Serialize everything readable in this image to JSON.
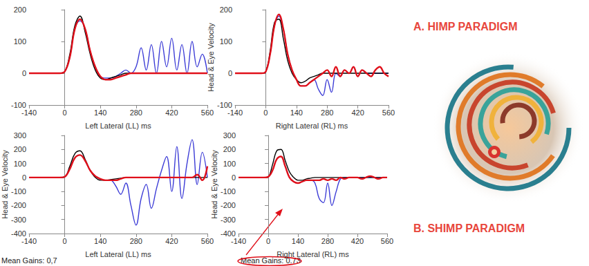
{
  "panel_labels": [
    "A. HIMP PARADIGM",
    "B. SHIMP PARADIGM"
  ],
  "chart_data": [
    {
      "type": "line",
      "x_label": "Left Lateral (LL) ms",
      "x": [
        -140,
        -120,
        -100,
        -80,
        -60,
        -40,
        -20,
        0,
        20,
        40,
        60,
        80,
        100,
        120,
        140,
        160,
        180,
        200,
        220,
        240,
        260,
        280,
        300,
        320,
        340,
        360,
        380,
        400,
        420,
        440,
        460,
        480,
        500,
        520,
        540,
        560
      ],
      "xlim": [
        -140,
        560
      ],
      "xticks": [
        -140,
        0,
        140,
        280,
        420,
        560
      ],
      "ylim": [
        -100,
        200
      ],
      "yticks": [
        -100,
        0,
        100,
        200
      ],
      "grid": false,
      "series": [
        {
          "color": "#3b3bd6",
          "values": [
            0,
            0,
            0,
            0,
            0,
            0,
            0,
            5,
            50,
            140,
            165,
            140,
            70,
            20,
            -10,
            -15,
            -15,
            -10,
            0,
            10,
            0,
            20,
            80,
            10,
            90,
            0,
            100,
            20,
            110,
            10,
            90,
            0,
            100,
            20,
            60,
            0
          ]
        },
        {
          "color": "#000000",
          "values": [
            0,
            0,
            0,
            0,
            0,
            0,
            0,
            5,
            60,
            150,
            180,
            130,
            60,
            10,
            -15,
            -20,
            -15,
            -10,
            -5,
            0,
            0,
            0,
            0,
            0,
            0,
            0,
            0,
            0,
            0,
            0,
            0,
            0,
            0,
            0,
            0,
            0
          ]
        },
        {
          "color": "#e0101a",
          "values": [
            0,
            0,
            0,
            0,
            0,
            0,
            0,
            5,
            50,
            140,
            170,
            140,
            70,
            20,
            -10,
            -20,
            -20,
            -15,
            -10,
            -5,
            0,
            0,
            0,
            0,
            0,
            0,
            0,
            0,
            0,
            0,
            0,
            0,
            0,
            0,
            0,
            0
          ]
        }
      ]
    },
    {
      "type": "line",
      "x_label": "Right Lateral (RL) ms",
      "y_label": "Head & Eye Velocity",
      "x": [
        -140,
        -120,
        -100,
        -80,
        -60,
        -40,
        -20,
        0,
        20,
        40,
        60,
        80,
        100,
        120,
        140,
        160,
        180,
        200,
        220,
        240,
        260,
        280,
        300,
        320,
        340,
        360,
        380,
        400,
        420,
        440,
        460,
        480,
        500,
        520,
        540,
        560
      ],
      "xlim": [
        -140,
        560
      ],
      "xticks": [
        -140,
        0,
        140,
        280,
        420,
        560
      ],
      "ylim": [
        -100,
        200
      ],
      "yticks": [
        -100,
        0,
        100,
        200
      ],
      "grid": false,
      "series": [
        {
          "color": "#3b3bd6",
          "values": [
            0,
            0,
            0,
            0,
            0,
            0,
            0,
            5,
            60,
            150,
            180,
            140,
            60,
            10,
            -20,
            -40,
            -40,
            -30,
            -20,
            -50,
            -70,
            -20,
            -60,
            0,
            -10,
            10,
            0,
            20,
            -10,
            10,
            0,
            0,
            0,
            0,
            0,
            0
          ]
        },
        {
          "color": "#000000",
          "values": [
            0,
            0,
            0,
            0,
            0,
            0,
            0,
            5,
            70,
            160,
            170,
            110,
            40,
            0,
            -20,
            -30,
            -25,
            -15,
            -10,
            -5,
            0,
            0,
            0,
            0,
            0,
            0,
            0,
            0,
            0,
            0,
            0,
            0,
            0,
            0,
            0,
            0
          ]
        },
        {
          "color": "#e0101a",
          "values": [
            0,
            0,
            0,
            0,
            0,
            0,
            0,
            5,
            60,
            150,
            185,
            140,
            60,
            10,
            -20,
            -40,
            -40,
            -30,
            -20,
            -10,
            0,
            10,
            -10,
            20,
            -10,
            10,
            0,
            20,
            -10,
            10,
            0,
            -10,
            10,
            20,
            0,
            -10
          ]
        }
      ]
    },
    {
      "type": "line",
      "x_label": "Left Lateral (LL) ms",
      "y_label": "Head & Eye Velocity",
      "annotation": "Mean Gains: 0,7",
      "x": [
        -140,
        -120,
        -100,
        -80,
        -60,
        -40,
        -20,
        0,
        20,
        40,
        60,
        80,
        100,
        120,
        140,
        160,
        180,
        200,
        220,
        240,
        260,
        280,
        300,
        320,
        340,
        360,
        380,
        400,
        420,
        440,
        460,
        480,
        500,
        520,
        540,
        560
      ],
      "xlim": [
        -140,
        560
      ],
      "xticks": [
        -140,
        0,
        140,
        280,
        420,
        560
      ],
      "ylim": [
        -400,
        300
      ],
      "yticks": [
        -400,
        -300,
        -200,
        -100,
        0,
        100,
        200,
        300
      ],
      "grid": false,
      "series": [
        {
          "color": "#3b3bd6",
          "values": [
            0,
            0,
            0,
            0,
            0,
            0,
            0,
            5,
            60,
            140,
            160,
            120,
            50,
            10,
            -10,
            -20,
            -20,
            -60,
            -120,
            -40,
            -200,
            -340,
            -150,
            -50,
            -220,
            -80,
            50,
            150,
            -100,
            220,
            -150,
            100,
            270,
            -50,
            180,
            0
          ]
        },
        {
          "color": "#000000",
          "values": [
            0,
            0,
            0,
            0,
            0,
            0,
            0,
            5,
            80,
            170,
            190,
            130,
            50,
            0,
            -20,
            -20,
            -15,
            -10,
            -5,
            0,
            0,
            0,
            0,
            0,
            0,
            0,
            0,
            0,
            0,
            0,
            0,
            0,
            0,
            0,
            0,
            0
          ]
        },
        {
          "color": "#e0101a",
          "values": [
            0,
            0,
            0,
            0,
            0,
            0,
            0,
            5,
            60,
            140,
            160,
            120,
            50,
            10,
            -10,
            -20,
            -20,
            -20,
            -10,
            0,
            0,
            0,
            0,
            0,
            0,
            0,
            0,
            0,
            0,
            0,
            0,
            0,
            0,
            20,
            -20,
            80
          ]
        }
      ]
    },
    {
      "type": "line",
      "x_label": "Right Lateral (RL) ms",
      "y_label": "Head & Eye Velocity",
      "annotation": "Mean Gains: 0.73",
      "x": [
        -140,
        -120,
        -100,
        -80,
        -60,
        -40,
        -20,
        0,
        20,
        40,
        60,
        80,
        100,
        120,
        140,
        160,
        180,
        200,
        220,
        240,
        260,
        280,
        300,
        320,
        340,
        360,
        380,
        400,
        420,
        440,
        460,
        480,
        500,
        520,
        540,
        560
      ],
      "xlim": [
        -140,
        560
      ],
      "xticks": [
        -140,
        0,
        140,
        280,
        420,
        560
      ],
      "ylim": [
        -400,
        300
      ],
      "yticks": [
        -400,
        -300,
        -200,
        -100,
        0,
        100,
        200,
        300
      ],
      "grid": false,
      "series": [
        {
          "color": "#3b3bd6",
          "values": [
            0,
            0,
            0,
            0,
            0,
            0,
            0,
            5,
            50,
            130,
            150,
            80,
            0,
            -30,
            -40,
            -30,
            -20,
            -20,
            -40,
            -150,
            -180,
            -40,
            -200,
            -100,
            -10,
            0,
            0,
            0,
            0,
            0,
            0,
            0,
            0,
            0,
            0,
            0
          ]
        },
        {
          "color": "#000000",
          "values": [
            0,
            0,
            0,
            0,
            0,
            0,
            0,
            5,
            90,
            190,
            200,
            120,
            40,
            0,
            -20,
            -20,
            -10,
            -5,
            0,
            0,
            0,
            0,
            0,
            0,
            0,
            0,
            0,
            0,
            0,
            0,
            0,
            0,
            0,
            0,
            0,
            0
          ]
        },
        {
          "color": "#e0101a",
          "values": [
            0,
            0,
            0,
            0,
            0,
            0,
            0,
            5,
            50,
            130,
            150,
            80,
            0,
            -30,
            -40,
            -30,
            -20,
            -20,
            -20,
            -20,
            -10,
            -20,
            -10,
            -20,
            0,
            -10,
            0,
            0,
            0,
            -10,
            0,
            10,
            0,
            -10,
            0,
            0
          ]
        }
      ]
    }
  ]
}
